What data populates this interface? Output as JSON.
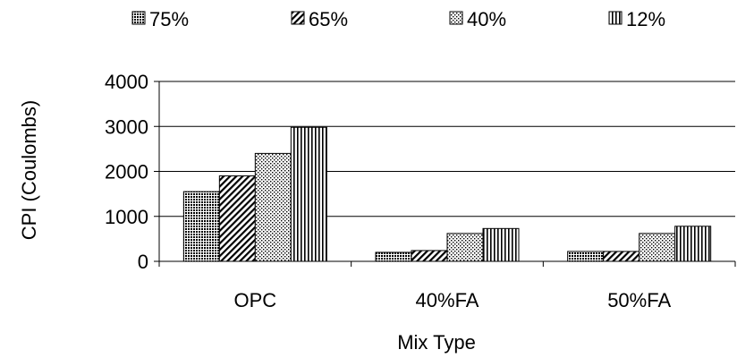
{
  "chart_data": {
    "type": "bar",
    "categories": [
      "OPC",
      "40%FA",
      "50%FA"
    ],
    "series": [
      {
        "name": "75%",
        "values": [
          1550,
          200,
          220
        ],
        "pattern": "crosshatch"
      },
      {
        "name": "65%",
        "values": [
          1900,
          240,
          220
        ],
        "pattern": "diagonal"
      },
      {
        "name": "40%",
        "values": [
          2400,
          620,
          620
        ],
        "pattern": "dots"
      },
      {
        "name": "12%",
        "values": [
          2980,
          730,
          780
        ],
        "pattern": "vertical"
      }
    ],
    "title": "",
    "xlabel": "Mix Type",
    "ylabel": "CPI (Coulombs)",
    "ylim": [
      0,
      4000
    ],
    "yticks": [
      "0",
      "1000",
      "2000",
      "3000",
      "4000"
    ],
    "grid": true,
    "legend_position": "top"
  }
}
